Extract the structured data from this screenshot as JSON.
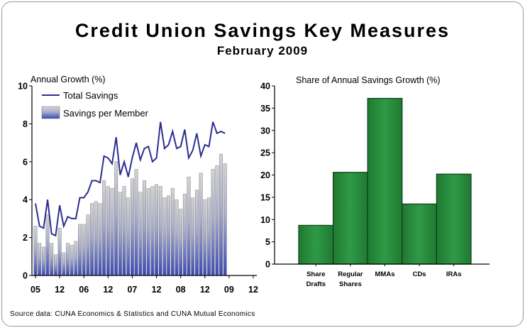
{
  "title": "Credit Union Savings Key Measures",
  "subtitle": "February 2009",
  "source": "Source data: CUNA Economics & Statistics and CUNA Mutual Economics",
  "colors": {
    "line": "#2b2f8f",
    "bar_top": "#d4d4d4",
    "bar_bottom": "#3a49b8",
    "green_bar": "#2a8c3e",
    "green_edge": "#0f3d18"
  },
  "chart_data": [
    {
      "type": "bar+line",
      "ylabel": "Annual Growth (%)",
      "ylim": [
        0,
        10
      ],
      "yticks": [
        0,
        2,
        4,
        6,
        8,
        10
      ],
      "x_tick_labels": [
        "05",
        "12",
        "06",
        "12",
        "07",
        "12",
        "08",
        "12",
        "09",
        "12"
      ],
      "x_tick_positions": [
        0,
        6,
        12,
        18,
        24,
        30,
        36,
        42,
        48,
        54
      ],
      "grid": false,
      "legend": "top-left",
      "series": [
        {
          "name": "Total Savings",
          "kind": "line",
          "x": [
            0,
            1,
            2,
            3,
            4,
            5,
            6,
            7,
            8,
            9,
            10,
            11,
            12,
            13,
            14,
            15,
            16,
            17,
            18,
            19,
            20,
            21,
            22,
            23,
            24,
            25,
            26,
            27,
            28,
            29,
            30,
            31,
            32,
            33,
            34,
            35,
            36,
            37,
            38,
            39,
            40,
            41,
            42,
            43,
            44,
            45,
            46,
            47
          ],
          "values": [
            3.8,
            2.6,
            2.5,
            4.0,
            2.2,
            2.1,
            3.7,
            2.6,
            3.1,
            3.0,
            3.0,
            4.1,
            4.1,
            4.4,
            5.0,
            5.0,
            4.9,
            6.3,
            6.2,
            5.9,
            7.3,
            5.3,
            6.0,
            5.2,
            6.2,
            7.0,
            6.1,
            6.7,
            6.8,
            6.0,
            6.2,
            8.1,
            6.7,
            6.9,
            7.6,
            6.7,
            6.8,
            7.7,
            6.2,
            6.6,
            7.5,
            6.3,
            6.9,
            6.8,
            8.1,
            7.5,
            7.6,
            7.5
          ]
        },
        {
          "name": "Savings per Member",
          "kind": "bar",
          "x": [
            0,
            1,
            2,
            3,
            4,
            5,
            6,
            7,
            8,
            9,
            10,
            11,
            12,
            13,
            14,
            15,
            16,
            17,
            18,
            19,
            20,
            21,
            22,
            23,
            24,
            25,
            26,
            27,
            28,
            29,
            30,
            31,
            32,
            33,
            34,
            35,
            36,
            37,
            38,
            39,
            40,
            41,
            42,
            43,
            44,
            45,
            46,
            47
          ],
          "values": [
            2.6,
            1.7,
            1.5,
            3.2,
            1.7,
            1.1,
            2.5,
            1.2,
            1.7,
            1.6,
            1.8,
            2.7,
            2.7,
            3.2,
            3.8,
            3.9,
            3.8,
            5.0,
            4.7,
            4.6,
            6.0,
            4.4,
            4.7,
            4.1,
            5.1,
            5.6,
            4.4,
            5.0,
            4.6,
            4.7,
            4.8,
            4.7,
            4.1,
            4.2,
            4.6,
            4.0,
            3.5,
            4.3,
            5.2,
            4.1,
            4.5,
            5.4,
            4.0,
            4.1,
            5.6,
            5.8,
            6.4,
            5.9
          ]
        }
      ]
    },
    {
      "type": "bar",
      "title": "Share of Annual Savings Growth (%)",
      "categories": [
        [
          "Share",
          "Drafts"
        ],
        [
          "Regular",
          "Shares"
        ],
        [
          "MMAs"
        ],
        [
          "CDs"
        ],
        [
          "IRAs"
        ]
      ],
      "values": [
        8.7,
        20.6,
        37.2,
        13.5,
        20.2
      ],
      "ylim": [
        0,
        40
      ],
      "yticks": [
        0,
        5,
        10,
        15,
        20,
        25,
        30,
        35,
        40
      ],
      "grid": false
    }
  ]
}
